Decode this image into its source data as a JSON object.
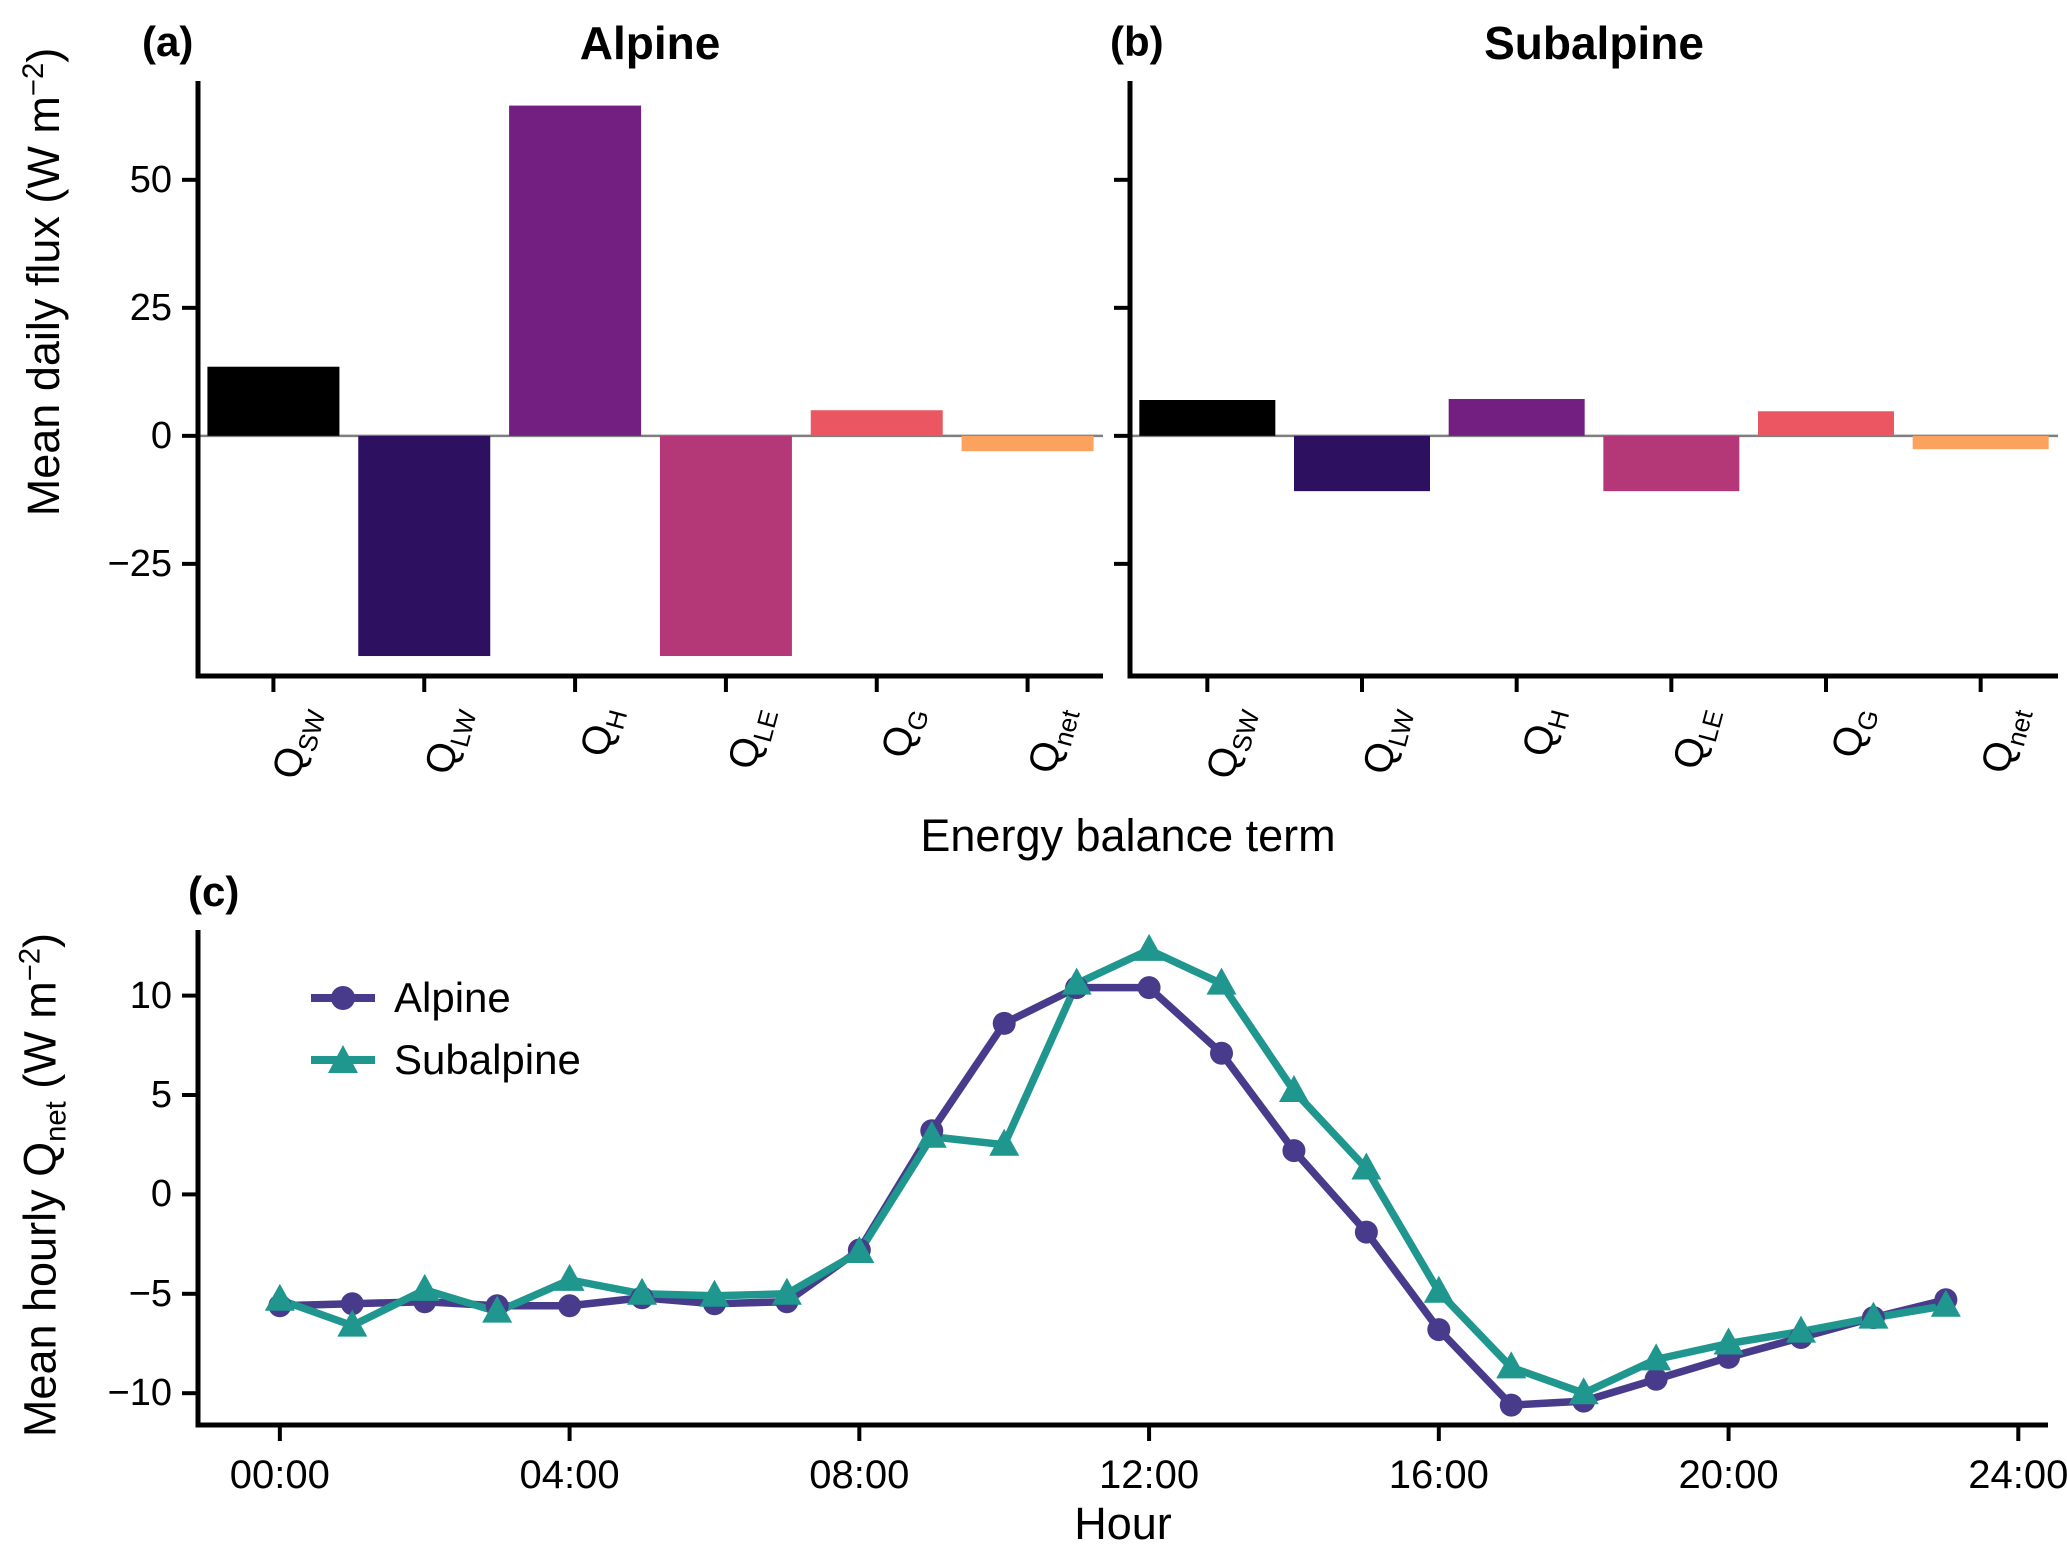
{
  "figure": {
    "background": "#ffffff",
    "panels": {
      "a": {
        "label": "(a)"
      },
      "b": {
        "label": "(b)"
      },
      "c": {
        "label": "(c)"
      }
    },
    "shared_x_label": "Energy balance term",
    "ylabel_ab": {
      "prefix": "Mean daily flux (W m",
      "sup": "−2",
      "suffix": ")"
    },
    "ylabel_c": {
      "p1": "Mean hourly Q",
      "sub": "net",
      "p2": " (W m",
      "sup": "−2",
      "p3": ")"
    },
    "xlabel_c": "Hour",
    "axis_color": "#000000",
    "zero_line_color": "#7f7f7f"
  },
  "chart_data": [
    {
      "id": "panel-a",
      "type": "bar",
      "title": "Alpine",
      "categories": [
        {
          "base": "Q",
          "sub": "SW"
        },
        {
          "base": "Q",
          "sub": "LW"
        },
        {
          "base": "Q",
          "sub": "H"
        },
        {
          "base": "Q",
          "sub": "LE"
        },
        {
          "base": "Q",
          "sub": "G"
        },
        {
          "base": "Q",
          "sub": "net"
        }
      ],
      "values": [
        13.5,
        -43,
        64.5,
        -43,
        5,
        -3
      ],
      "bar_colors": [
        "#000000",
        "#2d1160",
        "#721f81",
        "#b43778",
        "#ea5661",
        "#fba25f"
      ],
      "yticks": [
        50,
        25,
        0,
        -25
      ],
      "ylim": [
        -46.9,
        69.3
      ],
      "ylabel": "Mean daily flux (W m-2)",
      "grid": false
    },
    {
      "id": "panel-b",
      "type": "bar",
      "title": "Subalpine",
      "categories": [
        {
          "base": "Q",
          "sub": "SW"
        },
        {
          "base": "Q",
          "sub": "LW"
        },
        {
          "base": "Q",
          "sub": "H"
        },
        {
          "base": "Q",
          "sub": "LE"
        },
        {
          "base": "Q",
          "sub": "G"
        },
        {
          "base": "Q",
          "sub": "net"
        }
      ],
      "values": [
        7,
        -10.8,
        7.2,
        -10.8,
        4.8,
        -2.6
      ],
      "bar_colors": [
        "#000000",
        "#2d1160",
        "#721f81",
        "#b43778",
        "#ea5661",
        "#fba25f"
      ],
      "yticks": [
        50,
        25,
        0,
        -25
      ],
      "ylim": [
        -46.9,
        69.3
      ],
      "grid": false
    },
    {
      "id": "panel-c",
      "type": "line",
      "x": [
        0,
        1,
        2,
        3,
        4,
        5,
        6,
        7,
        8,
        9,
        10,
        11,
        12,
        13,
        14,
        15,
        16,
        17,
        18,
        19,
        20,
        21,
        22,
        23
      ],
      "series": [
        {
          "name": "Alpine",
          "color": "#483b8b",
          "marker": "circle",
          "values": [
            -5.6,
            -5.5,
            -5.4,
            -5.6,
            -5.6,
            -5.2,
            -5.5,
            -5.4,
            -2.8,
            3.2,
            8.6,
            10.4,
            10.4,
            7.1,
            2.2,
            -1.9,
            -6.8,
            -10.6,
            -10.4,
            -9.3,
            -8.2,
            -7.2,
            -6.2,
            -5.3
          ]
        },
        {
          "name": "Subalpine",
          "color": "#1f968e",
          "marker": "triangle",
          "values": [
            -5.3,
            -6.6,
            -4.8,
            -5.9,
            -4.3,
            -5.0,
            -5.1,
            -5.0,
            -2.9,
            2.9,
            2.5,
            10.6,
            12.3,
            10.6,
            5.2,
            1.3,
            -4.9,
            -8.7,
            -10.0,
            -8.3,
            -7.5,
            -6.9,
            -6.2,
            -5.6
          ]
        }
      ],
      "xticks": [
        {
          "value": 0,
          "label": "00:00"
        },
        {
          "value": 4,
          "label": "04:00"
        },
        {
          "value": 8,
          "label": "08:00"
        },
        {
          "value": 12,
          "label": "12:00"
        },
        {
          "value": 16,
          "label": "16:00"
        },
        {
          "value": 20,
          "label": "20:00"
        },
        {
          "value": 24,
          "label": "24:00"
        }
      ],
      "yticks": [
        10,
        5,
        0,
        -5,
        -10
      ],
      "ylim": [
        -11.6,
        13.3
      ],
      "xlim": [
        -1.13,
        24.41
      ],
      "xlabel": "Hour",
      "legend_position": "top-left",
      "grid": false
    }
  ]
}
